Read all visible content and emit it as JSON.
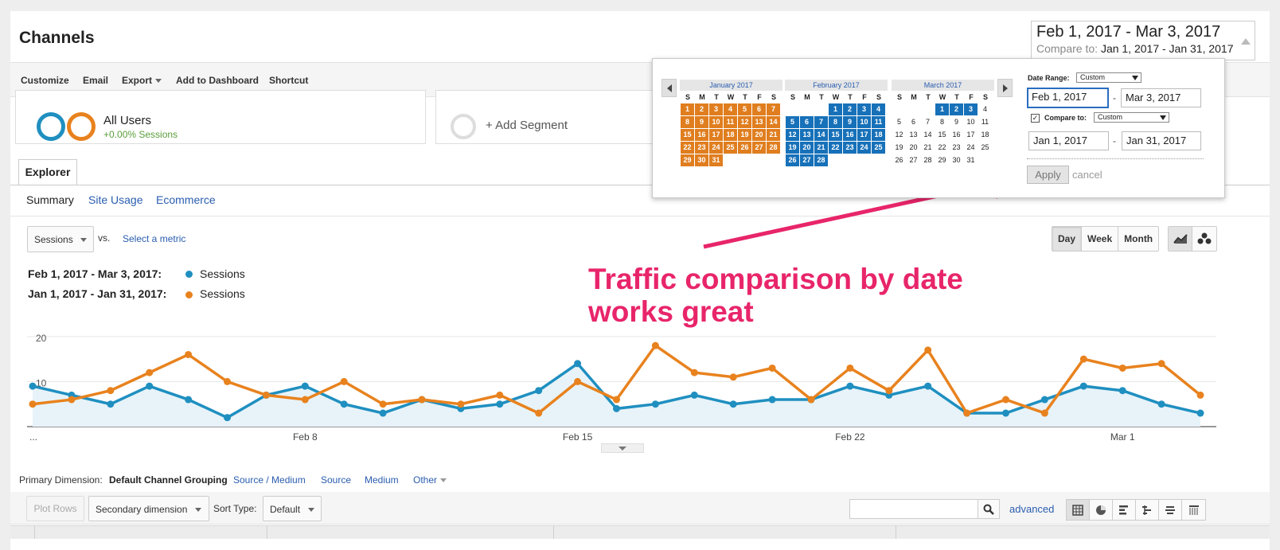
{
  "page": {
    "title": "Channels",
    "date_range": {
      "main": "Feb 1, 2017 - Mar 3, 2017",
      "compare_label": "Compare to:",
      "compare_value": "Jan 1, 2017 - Jan 31, 2017"
    }
  },
  "toolbar": {
    "customize": "Customize",
    "email": "Email",
    "export": "Export",
    "add_to_dashboard": "Add to Dashboard",
    "shortcut": "Shortcut"
  },
  "segments": {
    "all_users_name": "All Users",
    "all_users_sub": "+0.00% Sessions",
    "add_segment": "+ Add Segment"
  },
  "tabs": {
    "explorer": "Explorer",
    "summary": "Summary",
    "site_usage": "Site Usage",
    "ecommerce": "Ecommerce"
  },
  "chart_controls": {
    "metric": "Sessions",
    "vs": "vs.",
    "select_metric": "Select a metric",
    "day": "Day",
    "week": "Week",
    "month": "Month",
    "line_chart_icon": "line-chart-icon",
    "motion_chart_icon": "bubbles-icon"
  },
  "legend": {
    "range1": "Feb 1, 2017 - Mar 3, 2017:",
    "range2": "Jan 1, 2017 - Jan 31, 2017:",
    "series1": "Sessions",
    "series2": "Sessions",
    "color1": "#1f8fc0",
    "color2": "#e8821e"
  },
  "annotation": {
    "line1": "Traffic comparison by date",
    "line2": "works great",
    "color": "#e8256a"
  },
  "chart_data": {
    "type": "line",
    "y_ticks": [
      "20",
      "10"
    ],
    "ylim": [
      0,
      20
    ],
    "x_tick_labels": [
      "...",
      "Feb 8",
      "Feb 15",
      "Feb 22",
      "Mar 1"
    ],
    "x_tick_index": [
      0,
      7,
      14,
      21,
      28
    ],
    "grid": true,
    "series": [
      {
        "name": "Sessions",
        "color": "#1f8fc0",
        "area": true,
        "values": [
          9,
          7,
          5,
          9,
          6,
          2,
          7,
          9,
          5,
          3,
          6,
          4,
          5,
          8,
          14,
          4,
          5,
          7,
          5,
          6,
          6,
          9,
          7,
          9,
          3,
          3,
          6,
          9,
          8,
          5,
          3
        ]
      },
      {
        "name": "Sessions",
        "color": "#e8821e",
        "area": false,
        "values": [
          5,
          6,
          8,
          12,
          16,
          10,
          7,
          6,
          10,
          5,
          6,
          5,
          7,
          3,
          10,
          6,
          18,
          12,
          11,
          13,
          6,
          13,
          8,
          17,
          3,
          6,
          3,
          15,
          13,
          14,
          7
        ]
      }
    ]
  },
  "dimensions": {
    "primary_label": "Primary Dimension:",
    "active": "Default Channel Grouping",
    "others": [
      "Source / Medium",
      "Source",
      "Medium",
      "Other"
    ]
  },
  "table_toolbar": {
    "plot_rows": "Plot Rows",
    "secondary_dimension": "Secondary dimension",
    "sort_type_label": "Sort Type:",
    "sort_type_value": "Default",
    "advanced": "advanced",
    "search_placeholder": ""
  },
  "date_picker": {
    "months": [
      {
        "title": "January 2017",
        "start_offset": 0,
        "days": 31,
        "highlight": "orange",
        "from": 1,
        "to": 31
      },
      {
        "title": "February 2017",
        "start_offset": 3,
        "days": 28,
        "highlight": "blue",
        "from": 1,
        "to": 28
      },
      {
        "title": "March 2017",
        "start_offset": 3,
        "days": 31,
        "highlight": "blue",
        "from": 1,
        "to": 3
      }
    ],
    "weekdays": [
      "S",
      "M",
      "T",
      "W",
      "T",
      "F",
      "S"
    ],
    "date_range_label": "Date Range:",
    "date_range_value": "Custom",
    "start": "Feb 1, 2017",
    "end": "Mar 3, 2017",
    "compare_label": "Compare to:",
    "compare_value": "Custom",
    "compare_start": "Jan 1, 2017",
    "compare_end": "Jan 31, 2017",
    "dash": "-",
    "apply": "Apply",
    "cancel": "cancel",
    "orange": "#e07e1f",
    "blue": "#1771b9"
  }
}
